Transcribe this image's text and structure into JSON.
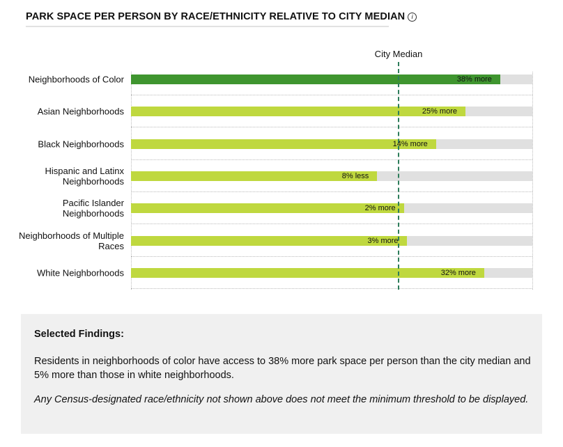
{
  "chart_data": {
    "type": "bar",
    "orientation": "horizontal",
    "title": "PARK SPACE PER PERSON BY RACE/ETHNICITY RELATIVE TO CITY MEDIAN",
    "reference_line": {
      "label": "City Median",
      "value": 100,
      "color": "#2e7d5b"
    },
    "unit": "percent of city median",
    "xlim": [
      0,
      150
    ],
    "grid": "dotted row separators",
    "categories": [
      "Neighborhoods of Color",
      "Asian Neighborhoods",
      "Black Neighborhoods",
      "Hispanic and Latinx Neighborhoods",
      "Pacific Islander Neighborhoods",
      "Neighborhoods of Multiple Races",
      "White Neighborhoods"
    ],
    "values": [
      138,
      125,
      114,
      92,
      102,
      103,
      132
    ],
    "data_labels": [
      "38% more",
      "25% more",
      "14% more",
      "8% less",
      "2% more",
      "3% more",
      "32% more"
    ],
    "colors": {
      "highlight": "#3f952f",
      "bar": "#bfd83f",
      "track": "#e0e0e0"
    }
  },
  "info_icon": "info-icon",
  "findings": {
    "heading": "Selected Findings:",
    "text": "Residents in neighborhoods of color have access to 38% more park space per person than the city median and 5% more than those in white neighborhoods.",
    "note": "Any Census-designated race/ethnicity not shown above does not meet the minimum threshold to be displayed."
  }
}
